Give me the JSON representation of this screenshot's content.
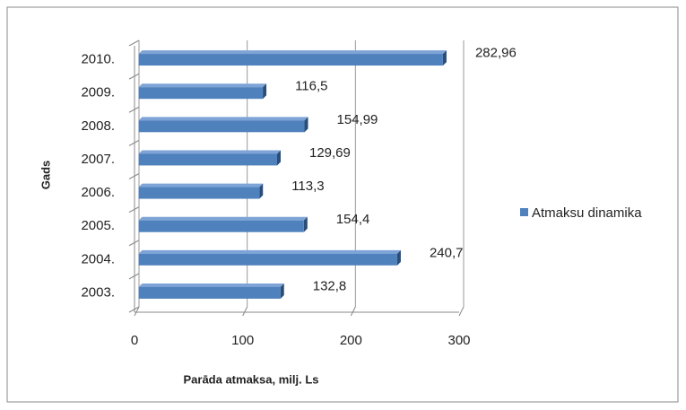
{
  "chart_data": {
    "type": "bar",
    "orientation": "horizontal",
    "x_label": "Parāda atmaksa, milj. Ls",
    "y_label": "Gads",
    "categories": [
      "2003.",
      "2004.",
      "2005.",
      "2006.",
      "2007.",
      "2008.",
      "2009.",
      "2010."
    ],
    "series": [
      {
        "name": "Atmaksu dinamika",
        "color": "#4f81bd",
        "values": [
          132.8,
          240.7,
          154.4,
          113.3,
          129.69,
          154.99,
          116.5,
          282.96
        ],
        "value_labels": [
          "132,8",
          "240,7",
          "154,4",
          "113,3",
          "129,69",
          "154,99",
          "116,5",
          "282,96"
        ]
      }
    ],
    "xlim": [
      0,
      300
    ],
    "xticks": [
      0,
      100,
      200,
      300
    ],
    "grid": true,
    "legend": "right"
  }
}
